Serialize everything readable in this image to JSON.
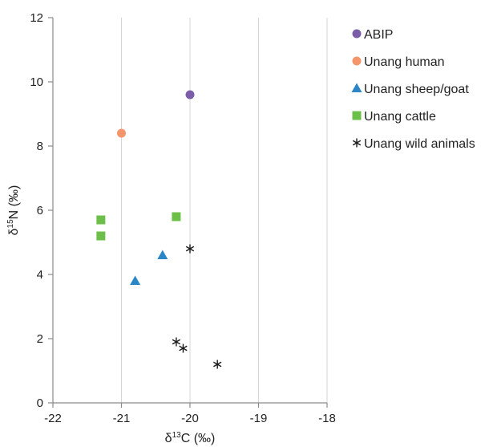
{
  "chart_data": {
    "type": "scatter",
    "xlabel_parts": [
      "δ",
      "13",
      "C (‰)"
    ],
    "ylabel_parts": [
      "δ",
      "15",
      "N (‰)"
    ],
    "xlim": [
      -22,
      -18
    ],
    "ylim": [
      0,
      12
    ],
    "x_ticks": [
      -22,
      -21,
      -20,
      -19,
      -18
    ],
    "y_ticks": [
      0,
      2,
      4,
      6,
      8,
      10,
      12
    ],
    "x_tick_labels": [
      "-22",
      "-21",
      "-20",
      "-19",
      "-18"
    ],
    "y_tick_labels": [
      "0",
      "2",
      "4",
      "6",
      "8",
      "10",
      "12"
    ],
    "grid": "vertical",
    "legend_position": "top-right",
    "series": [
      {
        "name": "ABIP",
        "marker": "circle",
        "color": "#7b5ea7",
        "points": [
          {
            "x": -20.0,
            "y": 9.6
          }
        ]
      },
      {
        "name": "Unang human",
        "marker": "circle",
        "color": "#f4956a",
        "points": [
          {
            "x": -21.0,
            "y": 8.4
          }
        ]
      },
      {
        "name": "Unang sheep/goat",
        "marker": "triangle",
        "color": "#2a86c7",
        "points": [
          {
            "x": -20.4,
            "y": 4.6
          },
          {
            "x": -20.8,
            "y": 3.8
          }
        ]
      },
      {
        "name": "Unang cattle",
        "marker": "square",
        "color": "#6cc04a",
        "points": [
          {
            "x": -21.3,
            "y": 5.7
          },
          {
            "x": -21.3,
            "y": 5.2
          },
          {
            "x": -20.2,
            "y": 5.8
          }
        ]
      },
      {
        "name": "Unang wild animals",
        "marker": "star",
        "color": "#1a1a1a",
        "points": [
          {
            "x": -20.0,
            "y": 4.8
          },
          {
            "x": -20.2,
            "y": 1.9
          },
          {
            "x": -20.1,
            "y": 1.7
          },
          {
            "x": -19.6,
            "y": 1.2
          }
        ]
      }
    ]
  }
}
